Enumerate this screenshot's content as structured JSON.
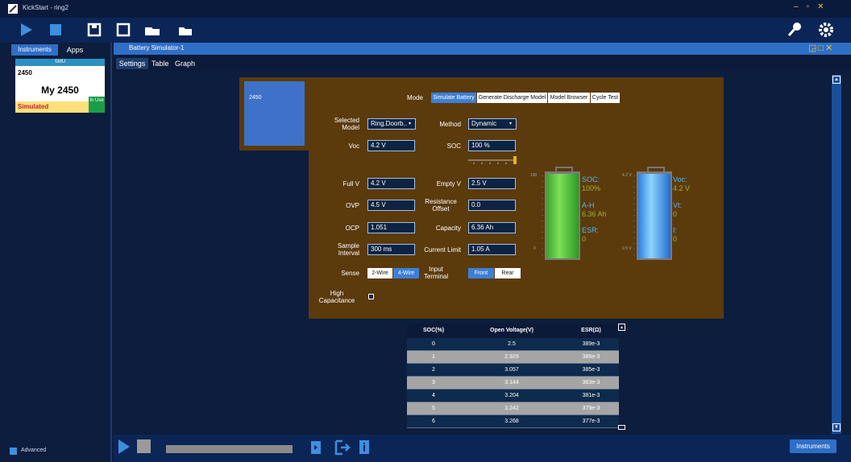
{
  "title_bar": {
    "title": "KickStart - ring2"
  },
  "left_panel": {
    "tabs": [
      "Instruments",
      "Apps"
    ],
    "card": {
      "type": "SMU",
      "model": "2450",
      "name": "My 2450",
      "status": "Simulated",
      "state": "In Use"
    },
    "advanced": "Advanced"
  },
  "document": {
    "title": "Battery Simulator-1",
    "tabs": [
      "Settings",
      "Table",
      "Graph"
    ]
  },
  "simulator": {
    "instrument": "2450",
    "mode_label": "Mode",
    "modes": [
      "Simulate Battery",
      "Generate Discharge Model",
      "Model Browser",
      "Cycle Test"
    ],
    "left_fields": [
      {
        "label": "Selected Model",
        "value": "Ring.Doorb.."
      },
      {
        "label": "Voc",
        "value": "4.2 V"
      },
      {
        "label": "Full V",
        "value": "4.2 V"
      },
      {
        "label": "OVP",
        "value": "4.5 V"
      },
      {
        "label": "OCP",
        "value": "1.051"
      },
      {
        "label": "Sample Interval",
        "value": "300 ms"
      }
    ],
    "right_fields": [
      {
        "label": "Method",
        "value": "Dynamic"
      },
      {
        "label": "SOC",
        "value": "100 %"
      },
      {
        "label": "Empty V",
        "value": "2.5 V"
      },
      {
        "label": "Resistance Offset",
        "value": "0.0"
      },
      {
        "label": "Capacity",
        "value": "6.36 Ah"
      },
      {
        "label": "Current Limit",
        "value": "1.05 A"
      }
    ],
    "sense": {
      "label": "Sense",
      "options": [
        "2-Wire",
        "4-Wire"
      ]
    },
    "input_terminal": {
      "label": "Input Terminal",
      "options": [
        "Front",
        "Rear"
      ]
    },
    "high_capacitance": {
      "label": "High Capacitance"
    },
    "soc_gauge": {
      "scale": [
        "100",
        "0"
      ],
      "readouts": [
        {
          "label": "SOC:",
          "value": "100%"
        },
        {
          "label": "A-H",
          "value": "6.36 Ah"
        },
        {
          "label": "ESR:",
          "value": "0"
        }
      ]
    },
    "voltage_gauge": {
      "scale": [
        "4.2 V",
        "2.5 V"
      ],
      "readouts": [
        {
          "label": "Voc:",
          "value": "4.2 V"
        },
        {
          "label": "Vt:",
          "value": "0"
        },
        {
          "label": "I:",
          "value": "0"
        }
      ]
    }
  },
  "table": {
    "columns": [
      "SOC(%)",
      "Open Voltage(V)",
      "ESR(Ω)"
    ],
    "rows": [
      [
        "0",
        "2.5",
        "389e-3"
      ],
      [
        "1",
        "2.929",
        "386e-3"
      ],
      [
        "2",
        "3.057",
        "385e-3"
      ],
      [
        "3",
        "3.144",
        "383e-3"
      ],
      [
        "4",
        "3.204",
        "381e-3"
      ],
      [
        "5",
        "3.242",
        "379e-3"
      ],
      [
        "6",
        "3.268",
        "377e-3"
      ]
    ]
  },
  "bottom_bar": {
    "button": "Instruments"
  }
}
